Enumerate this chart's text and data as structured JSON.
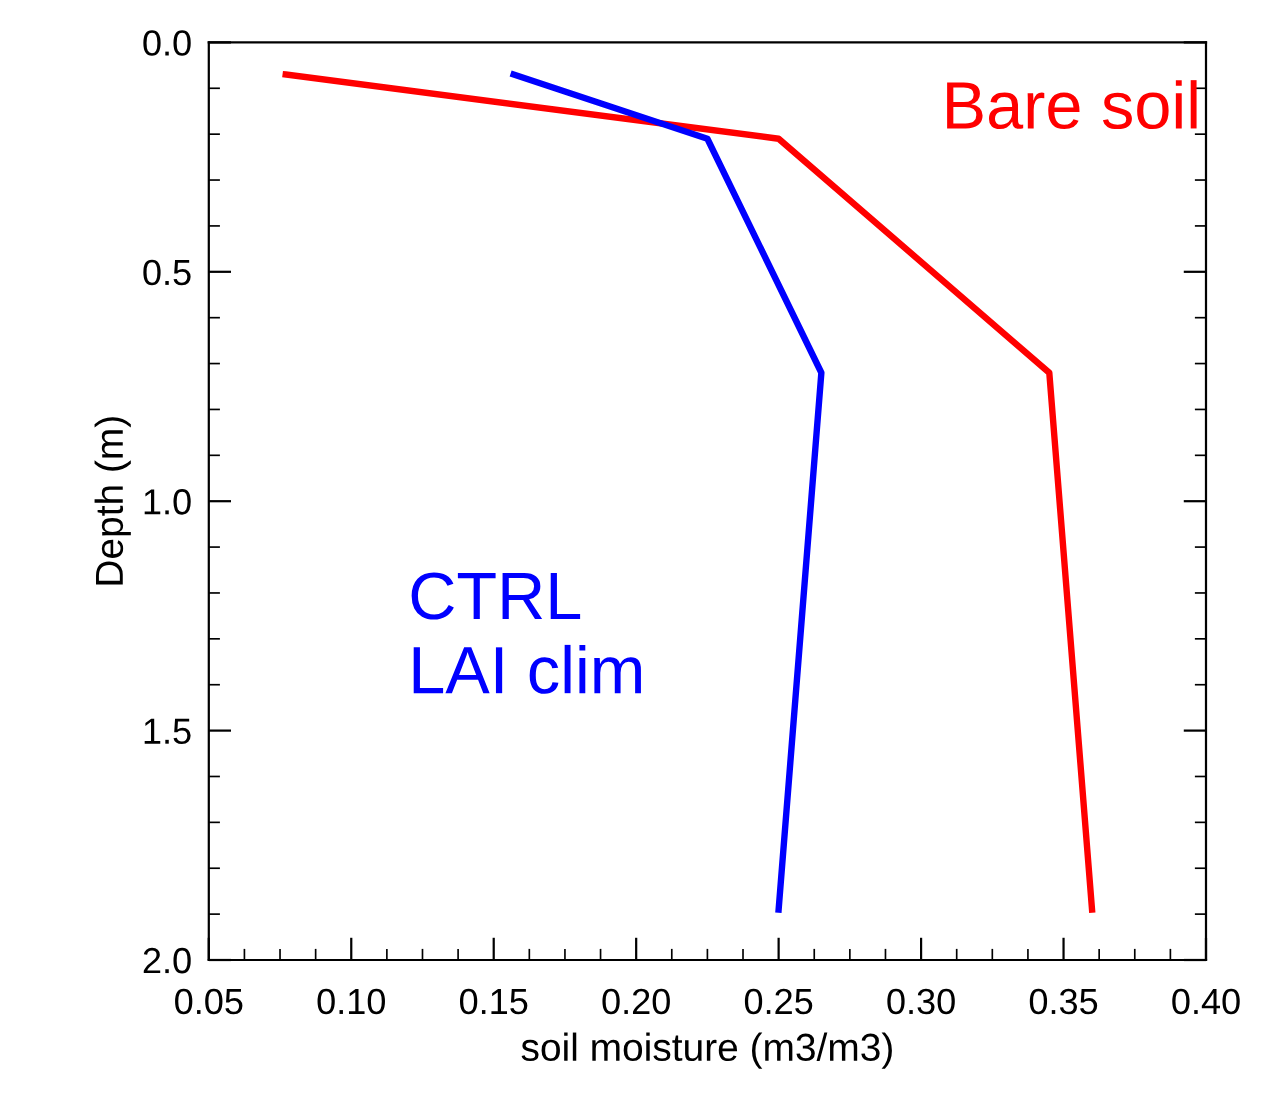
{
  "chart_data": {
    "type": "line",
    "xlabel": "soil moisture (m3/m3)",
    "ylabel": "Depth (m)",
    "series": [
      {
        "name": "Bare soil",
        "color": "#ff0000",
        "x": [
          0.077,
          0.25,
          0.345,
          0.36
        ],
        "values": [
          0.07,
          0.21,
          0.72,
          1.89
        ]
      },
      {
        "name": "CTRL\nLAI clim",
        "color": "#0000ff",
        "x": [
          0.157,
          0.225,
          0.265,
          0.25
        ],
        "values": [
          0.07,
          0.21,
          0.72,
          1.89
        ]
      }
    ],
    "xlim": [
      0.05,
      0.4
    ],
    "ylim": [
      2.0,
      0.0
    ],
    "xticks": [
      0.05,
      {
        "value": 0.1,
        "label": "0.10"
      },
      0.15,
      {
        "value": 0.2,
        "label": "0.20"
      },
      0.25,
      {
        "value": 0.3,
        "label": "0.30"
      },
      0.35,
      {
        "value": 0.4,
        "label": "0.40"
      }
    ],
    "yticks": [
      {
        "value": 0.0,
        "label": "0.0"
      },
      0.5,
      {
        "value": 1.0,
        "label": "1.0"
      },
      1.5,
      {
        "value": 2.0,
        "label": "2.0"
      }
    ],
    "grid": false,
    "legend": false,
    "marker": "none",
    "line_style": "solid"
  }
}
